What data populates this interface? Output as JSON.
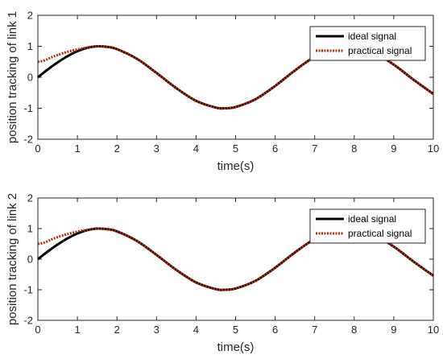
{
  "chart_data": [
    {
      "type": "line",
      "title": "",
      "xlabel": "time(s)",
      "ylabel": "position tracking of link 1",
      "xlim": [
        0,
        10
      ],
      "ylim": [
        -2,
        2
      ],
      "xticks": [
        "0",
        "1",
        "2",
        "3",
        "4",
        "5",
        "6",
        "7",
        "8",
        "9",
        "10"
      ],
      "yticks": [
        "2",
        "1",
        "0",
        "-1",
        "-2"
      ],
      "grid": false,
      "legend_position": "top-right",
      "series": [
        {
          "name": "ideal signal",
          "color": "#000000",
          "style": "solid",
          "x": [
            0,
            0.25,
            0.5,
            0.75,
            1,
            1.25,
            1.5,
            1.75,
            2,
            2.5,
            3,
            3.5,
            4,
            4.5,
            4.71,
            5,
            5.5,
            6,
            6.5,
            7,
            7.5,
            7.85,
            8,
            8.5,
            9,
            9.5,
            10
          ],
          "y": [
            0,
            0.25,
            0.48,
            0.68,
            0.84,
            0.95,
            1.0,
            0.98,
            0.91,
            0.6,
            0.14,
            -0.35,
            -0.76,
            -0.98,
            -1.0,
            -0.96,
            -0.71,
            -0.28,
            0.22,
            0.66,
            0.94,
            1.0,
            0.99,
            0.8,
            0.41,
            -0.08,
            -0.54
          ]
        },
        {
          "name": "practical signal",
          "color": "#b22a12",
          "style": "dotted",
          "x": [
            0,
            0.1,
            0.2,
            0.3,
            0.5,
            0.75,
            1,
            1.25,
            1.5,
            1.75,
            2,
            2.5,
            3,
            3.5,
            4,
            4.5,
            4.71,
            5,
            5.5,
            6,
            6.5,
            7,
            7.5,
            7.85,
            8,
            8.5,
            9,
            9.5,
            10
          ],
          "y": [
            0.5,
            0.52,
            0.56,
            0.62,
            0.72,
            0.82,
            0.9,
            0.96,
            1.0,
            0.98,
            0.91,
            0.6,
            0.14,
            -0.35,
            -0.76,
            -0.98,
            -1.0,
            -0.96,
            -0.71,
            -0.28,
            0.22,
            0.66,
            0.94,
            1.0,
            0.99,
            0.8,
            0.41,
            -0.08,
            -0.54
          ]
        }
      ]
    },
    {
      "type": "line",
      "title": "",
      "xlabel": "time(s)",
      "ylabel": "position tracking of link 2",
      "xlim": [
        0,
        10
      ],
      "ylim": [
        -2,
        2
      ],
      "xticks": [
        "0",
        "1",
        "2",
        "3",
        "4",
        "5",
        "6",
        "7",
        "8",
        "9",
        "10"
      ],
      "yticks": [
        "2",
        "1",
        "0",
        "-1",
        "-2"
      ],
      "grid": false,
      "legend_position": "top-right",
      "series": [
        {
          "name": "ideal signal",
          "color": "#000000",
          "style": "solid",
          "x": [
            0,
            0.25,
            0.5,
            0.75,
            1,
            1.25,
            1.5,
            1.75,
            2,
            2.5,
            3,
            3.5,
            4,
            4.5,
            4.71,
            5,
            5.5,
            6,
            6.5,
            7,
            7.5,
            7.85,
            8,
            8.5,
            9,
            9.5,
            10
          ],
          "y": [
            0,
            0.25,
            0.48,
            0.68,
            0.84,
            0.95,
            1.0,
            0.98,
            0.91,
            0.6,
            0.14,
            -0.35,
            -0.76,
            -0.98,
            -1.0,
            -0.96,
            -0.71,
            -0.28,
            0.22,
            0.66,
            0.94,
            1.0,
            0.99,
            0.8,
            0.41,
            -0.08,
            -0.54
          ]
        },
        {
          "name": "practical signal",
          "color": "#b22a12",
          "style": "dotted",
          "x": [
            0,
            0.1,
            0.2,
            0.3,
            0.5,
            0.75,
            1,
            1.25,
            1.5,
            1.75,
            2,
            2.5,
            3,
            3.5,
            4,
            4.5,
            4.71,
            5,
            5.5,
            6,
            6.5,
            7,
            7.5,
            7.85,
            8,
            8.5,
            9,
            9.5,
            10
          ],
          "y": [
            0.5,
            0.52,
            0.56,
            0.62,
            0.72,
            0.82,
            0.9,
            0.96,
            1.0,
            0.98,
            0.91,
            0.6,
            0.14,
            -0.35,
            -0.76,
            -0.98,
            -1.0,
            -0.96,
            -0.71,
            -0.28,
            0.22,
            0.66,
            0.94,
            1.0,
            0.99,
            0.8,
            0.41,
            -0.08,
            -0.54
          ]
        }
      ]
    }
  ]
}
